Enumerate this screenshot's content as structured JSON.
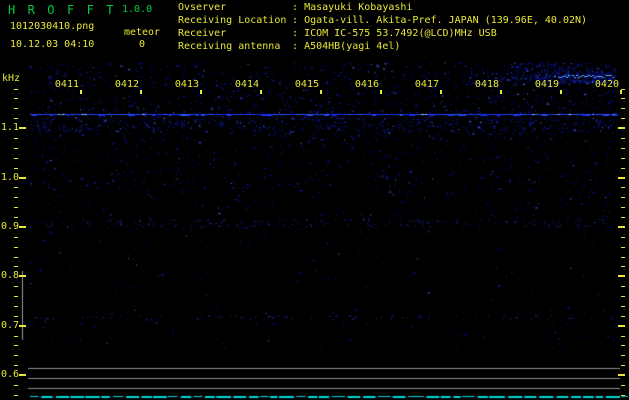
{
  "header": {
    "title": "H R O F F T",
    "version": "1.0.0",
    "filename": "1012030410.png",
    "mode": "meteor",
    "meteor_count": "0",
    "datetime": "10.12.03 04:10",
    "separator": ":",
    "info_rows": [
      {
        "label": "Ovserver",
        "value": "Masayuki Kobayashi"
      },
      {
        "label": "Receiving Location",
        "value": "Ogata-vill. Akita-Pref. JAPAN (139.96E, 40.02N)"
      },
      {
        "label": "Receiver",
        "value": "ICOM IC-575 53.7492(@LCD)MHz USB"
      },
      {
        "label": "Receiving antenna",
        "value": "A504HB(yagi 4el)"
      }
    ]
  },
  "chart_data": {
    "type": "heatmap",
    "subtype": "radio-meteor-spectrogram",
    "title": "HROFFT 1.0.0 spectrogram 1012030410.png (10.12.03 04:10, meteor count 0)",
    "xlabel": "",
    "ylabel": "kHz",
    "y_unit_label": "kHz",
    "x_ticks": [
      "0411",
      "0412",
      "0413",
      "0414",
      "0415",
      "0416",
      "0417",
      "0418",
      "0419",
      "0420"
    ],
    "y_tick_labels": [
      "1.1",
      "1.0",
      "0.9",
      "0.8",
      "0.7",
      "0.6"
    ],
    "y_range_khz": [
      0.56,
      1.22
    ],
    "x_range_time": [
      "04:11",
      "04:20"
    ],
    "meteor_count": 0,
    "legend": "none",
    "grid": "off",
    "features": [
      {
        "name": "carrier-line",
        "freq_khz": 1.13,
        "extent": "full time span",
        "description": "thin continuous blue carrier/interference line"
      },
      {
        "name": "noise-band",
        "freq_khz_range": [
          1.05,
          1.22
        ],
        "description": "dense blue background-noise speckle at top of band"
      },
      {
        "name": "interference-streak",
        "time": "0418-0420",
        "freq_khz": 1.21,
        "description": "brighter blue noise streak at top right"
      },
      {
        "name": "faint-band",
        "freq_khz": 0.9,
        "description": "very faint horizontal noise band"
      },
      {
        "name": "faint-dotted-line",
        "freq_khz": 0.71,
        "description": "very faint sparse dotted blue line"
      },
      {
        "name": "level-grid",
        "description": "three horizontal gray reference lines near 0.6 kHz for the level trace"
      },
      {
        "name": "level-trace",
        "value": "flat baseline",
        "description": "dashed cyan signal-level trace along the bottom; no meteor echoes"
      }
    ]
  },
  "colors": {
    "background": "#000000",
    "text_yellow": "#e8e83a",
    "title_green": "#00cc44",
    "noise_blue": "#1428dc",
    "carrier_blue": "#5a8cff",
    "streak_blue": "#3c64dc",
    "trace_cyan": "#00d9d9",
    "grid_gray": "#8c8c8c"
  }
}
